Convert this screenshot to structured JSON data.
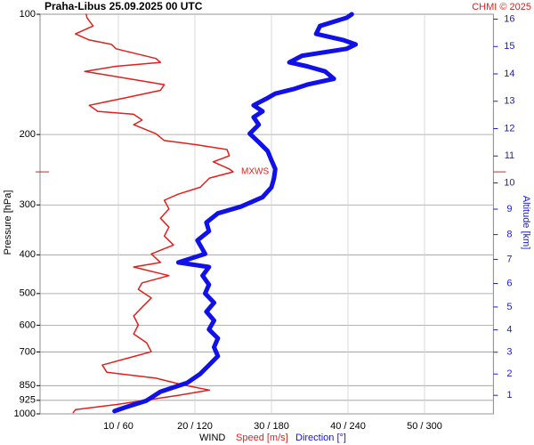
{
  "chart_data": {
    "type": "line",
    "title": "Praha-Libus    25.09.2025 00 UTC",
    "source": "CHMI © 2025",
    "ylabel": "Pressure [hPa]",
    "y2label": "Altitude [km]",
    "xlabel": "WIND",
    "ylog": true,
    "ylim": [
      100,
      1000
    ],
    "yticks": [
      100,
      200,
      300,
      400,
      500,
      600,
      700,
      850,
      925,
      1000
    ],
    "y2ticks": [
      1,
      2,
      3,
      4,
      5,
      6,
      7,
      8,
      9,
      10,
      11,
      12,
      13,
      14,
      15,
      16
    ],
    "y2color": "#1a1adb",
    "xlim": [
      0,
      59
    ],
    "x2lim": [
      0,
      354
    ],
    "xticks": [
      {
        "value": 10,
        "label": "10 / 60"
      },
      {
        "value": 20,
        "label": "20 / 120"
      },
      {
        "value": 30,
        "label": "30 / 180"
      },
      {
        "value": 40,
        "label": "40 / 240"
      },
      {
        "value": 50,
        "label": "50 / 300"
      }
    ],
    "grid": true,
    "max_wind": {
      "label": "MXWS",
      "pressure": 248,
      "speed": 25
    },
    "series": [
      {
        "name": "Speed [m/s]",
        "color": "#e0201c",
        "width": 1.5,
        "pressure": [
          100,
          102,
          107,
          112,
          116,
          119,
          122,
          129,
          132,
          135,
          139,
          145,
          150,
          155,
          162,
          169,
          175,
          178,
          184,
          189,
          199,
          207,
          212,
          218,
          226,
          234,
          244,
          248,
          257,
          271,
          282,
          292,
          307,
          324,
          341,
          359,
          378,
          398,
          418,
          429,
          451,
          470,
          488,
          513,
          541,
          569,
          599,
          631,
          664,
          699,
          724,
          755,
          787,
          814,
          846,
          872,
          899,
          927,
          948,
          976,
          993
        ],
        "values": [
          5.8,
          5.9,
          6.7,
          4.4,
          6.2,
          9.1,
          9.7,
          14.9,
          15.5,
          9.7,
          5.6,
          11.4,
          16.0,
          15.5,
          10.8,
          6.2,
          7.3,
          12.0,
          13.1,
          12.0,
          14.9,
          16.0,
          20.1,
          24.2,
          24.5,
          22.4,
          24.5,
          25.0,
          21.9,
          20.7,
          17.8,
          16.0,
          16.6,
          15.5,
          16.6,
          16.0,
          17.2,
          14.3,
          15.5,
          12.0,
          16.6,
          13.1,
          12.6,
          14.3,
          13.1,
          12.0,
          12.6,
          12.0,
          13.7,
          14.3,
          11.4,
          7.9,
          8.5,
          14.9,
          18.4,
          21.9,
          17.8,
          13.1,
          9.7,
          4.4,
          4.1
        ]
      },
      {
        "name": "Direction [°]",
        "color": "#1010e8",
        "width": 5,
        "axis": "x2",
        "pressure": [
          100,
          102,
          107,
          112,
          116,
          119,
          122,
          127,
          132,
          135,
          139,
          145,
          150,
          154,
          158,
          162,
          169,
          175,
          181,
          189,
          199,
          209,
          220,
          232,
          244,
          257,
          271,
          287,
          303,
          315,
          332,
          349,
          368,
          398,
          418,
          429,
          451,
          475,
          500,
          527,
          555,
          584,
          615,
          647,
          681,
          717,
          755,
          795,
          836,
          880,
          927,
          964,
          984
        ],
        "values": [
          243,
          239,
          218,
          215,
          236,
          246,
          239,
          204,
          194,
          208,
          222,
          229,
          208,
          197,
          183,
          177,
          166,
          173,
          166,
          170,
          163,
          170,
          177,
          180,
          183,
          182,
          180,
          173,
          156,
          138,
          129,
          131,
          122,
          128,
          107,
          131,
          126,
          131,
          128,
          135,
          129,
          135,
          131,
          138,
          135,
          138,
          131,
          124,
          114,
          93,
          82,
          65,
          57
        ]
      }
    ]
  }
}
